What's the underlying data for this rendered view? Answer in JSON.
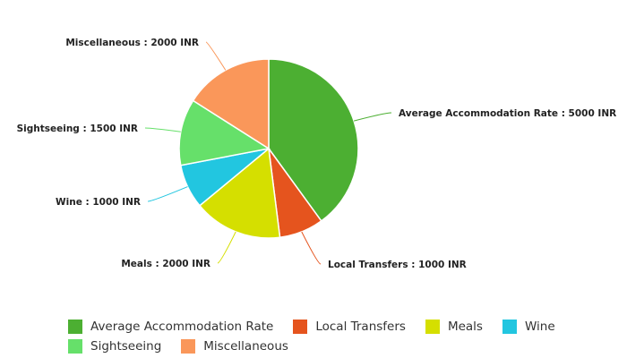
{
  "chart_data": {
    "type": "pie",
    "title": "",
    "currency": "INR",
    "slices": [
      {
        "name": "Average Accommodation Rate",
        "value": 5000,
        "label": "Average Accommodation Rate : 5000 INR",
        "color": "#4caf32"
      },
      {
        "name": "Local Transfers",
        "value": 1000,
        "label": "Local Transfers : 1000 INR",
        "color": "#e5541e"
      },
      {
        "name": "Meals",
        "value": 2000,
        "label": "Meals : 2000 INR",
        "color": "#d5df00"
      },
      {
        "name": "Wine",
        "value": 1000,
        "label": "Wine : 1000 INR",
        "color": "#22c6e0"
      },
      {
        "name": "Sightseeing",
        "value": 1500,
        "label": "Sightseeing : 1500 INR",
        "color": "#66e06a"
      },
      {
        "name": "Miscellaneous",
        "value": 2000,
        "label": "Miscellaneous : 2000 INR",
        "color": "#fa975a"
      }
    ],
    "legend_position": "bottom"
  }
}
